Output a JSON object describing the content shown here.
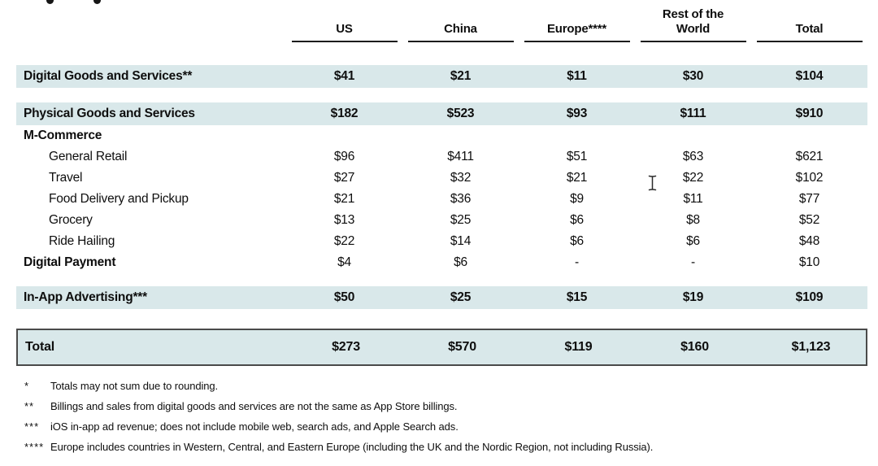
{
  "colors": {
    "row_highlight": "#d9e8ea",
    "total_box_border": "#4a4a4a",
    "header_underline": "#1c1c1c",
    "text": "#0e0e0e"
  },
  "icons": {
    "text_cursor": "i-beam-text-cursor",
    "title_remnants": "clipped-letter-descenders"
  },
  "table": {
    "columns": [
      "US",
      "China",
      "Europe****",
      "Rest of the\nWorld",
      "Total"
    ],
    "rows": [
      {
        "label": "Digital Goods and Services**",
        "type": "highlight",
        "values": [
          "$41",
          "$21",
          "$11",
          "$30",
          "$104"
        ]
      },
      {
        "label": "Physical Goods and Services",
        "type": "highlight",
        "values": [
          "$182",
          "$523",
          "$93",
          "$111",
          "$910"
        ]
      },
      {
        "label": "M-Commerce",
        "type": "section",
        "values": []
      },
      {
        "label": "General Retail",
        "type": "sub",
        "values": [
          "$96",
          "$411",
          "$51",
          "$63",
          "$621"
        ]
      },
      {
        "label": "Travel",
        "type": "sub",
        "values": [
          "$27",
          "$32",
          "$21",
          "$22",
          "$102"
        ]
      },
      {
        "label": "Food Delivery and Pickup",
        "type": "sub",
        "values": [
          "$21",
          "$36",
          "$9",
          "$11",
          "$77"
        ]
      },
      {
        "label": "Grocery",
        "type": "sub",
        "values": [
          "$13",
          "$25",
          "$6",
          "$8",
          "$52"
        ]
      },
      {
        "label": "Ride Hailing",
        "type": "sub",
        "values": [
          "$22",
          "$14",
          "$6",
          "$6",
          "$48"
        ]
      },
      {
        "label": "Digital Payment",
        "type": "plain",
        "values": [
          "$4",
          "$6",
          "-",
          "-",
          "$10"
        ]
      },
      {
        "label": "In-App Advertising***",
        "type": "highlight",
        "values": [
          "$50",
          "$25",
          "$15",
          "$19",
          "$109"
        ]
      },
      {
        "label": "Total",
        "type": "total",
        "values": [
          "$273",
          "$570",
          "$119",
          "$160",
          "$1,123"
        ]
      }
    ]
  },
  "chart_data": {
    "type": "table",
    "columns": [
      "US",
      "China",
      "Europe****",
      "Rest of the World",
      "Total"
    ],
    "rows": [
      {
        "label": "Digital Goods and Services**",
        "values": [
          41,
          21,
          11,
          30,
          104
        ]
      },
      {
        "label": "Physical Goods and Services",
        "values": [
          182,
          523,
          93,
          111,
          910
        ]
      },
      {
        "label": "General Retail",
        "values": [
          96,
          411,
          51,
          63,
          621
        ]
      },
      {
        "label": "Travel",
        "values": [
          27,
          32,
          21,
          22,
          102
        ]
      },
      {
        "label": "Food Delivery and Pickup",
        "values": [
          21,
          36,
          9,
          11,
          77
        ]
      },
      {
        "label": "Grocery",
        "values": [
          13,
          25,
          6,
          8,
          52
        ]
      },
      {
        "label": "Ride Hailing",
        "values": [
          22,
          14,
          6,
          6,
          48
        ]
      },
      {
        "label": "Digital Payment",
        "values": [
          4,
          6,
          null,
          null,
          10
        ]
      },
      {
        "label": "In-App Advertising***",
        "values": [
          50,
          25,
          15,
          19,
          109
        ]
      },
      {
        "label": "Total",
        "values": [
          273,
          570,
          119,
          160,
          1123
        ]
      }
    ]
  },
  "footnotes": [
    {
      "marker": "*",
      "text": "Totals may not sum due to rounding."
    },
    {
      "marker": "**",
      "text": "Billings and sales from digital goods and services are not the same as App Store billings."
    },
    {
      "marker": "***",
      "text": "iOS in-app ad revenue; does not include mobile web, search ads, and Apple Search ads."
    },
    {
      "marker": "****",
      "text": "Europe includes countries in Western, Central, and Eastern Europe (including the UK and the Nordic Region, not including Russia)."
    }
  ]
}
